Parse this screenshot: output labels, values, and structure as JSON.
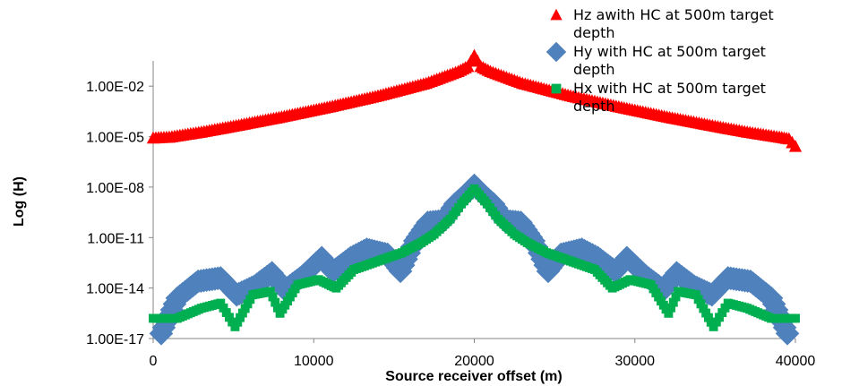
{
  "chart_data": {
    "type": "scatter",
    "title": "",
    "xlabel": "Source receiver offset (m)",
    "ylabel": "Log (H)",
    "xlim": [
      0,
      40000
    ],
    "ylim_log10": [
      -17,
      -0.5
    ],
    "y_scale": "log",
    "x_ticks": [
      0,
      10000,
      20000,
      30000,
      40000
    ],
    "x_tick_labels": [
      "0",
      "10000",
      "20000",
      "30000",
      "40000"
    ],
    "y_ticks_log10": [
      -17,
      -14,
      -11,
      -8,
      -5,
      -2
    ],
    "y_tick_labels": [
      "1.00E-17",
      "1.00E-14",
      "1.00E-11",
      "1.00E-08",
      "1.00E-05",
      "1.00E-02"
    ],
    "grid": false,
    "legend_position": "top-right",
    "series": [
      {
        "name": "Hz awith HC at 500m target depth",
        "marker": "triangle",
        "color": "#ff0000",
        "x_log10_y": [
          [
            0,
            -5.1
          ],
          [
            1000,
            -5.05
          ],
          [
            3000,
            -4.75
          ],
          [
            5000,
            -4.4
          ],
          [
            8000,
            -3.85
          ],
          [
            11000,
            -3.25
          ],
          [
            14000,
            -2.6
          ],
          [
            17000,
            -1.85
          ],
          [
            19000,
            -1.15
          ],
          [
            19600,
            -0.85
          ],
          [
            20000,
            -0.2
          ],
          [
            20400,
            -0.85
          ],
          [
            21000,
            -1.15
          ],
          [
            23000,
            -1.85
          ],
          [
            26000,
            -2.6
          ],
          [
            29000,
            -3.25
          ],
          [
            32000,
            -3.85
          ],
          [
            35000,
            -4.4
          ],
          [
            37000,
            -4.75
          ],
          [
            39000,
            -5.05
          ],
          [
            39600,
            -5.15
          ],
          [
            40000,
            -5.6
          ]
        ]
      },
      {
        "name": "Hy with HC at 500m target depth",
        "marker": "diamond",
        "color": "#4f81bd",
        "x_log10_y": [
          [
            500,
            -16.7
          ],
          [
            1500,
            -14.6
          ],
          [
            2800,
            -13.6
          ],
          [
            4200,
            -13.4
          ],
          [
            5200,
            -14.4
          ],
          [
            6300,
            -13.9
          ],
          [
            7400,
            -13.1
          ],
          [
            8200,
            -14.1
          ],
          [
            9300,
            -13.3
          ],
          [
            10500,
            -12.2
          ],
          [
            11200,
            -13.0
          ],
          [
            12300,
            -12.2
          ],
          [
            13300,
            -11.7
          ],
          [
            14600,
            -12.0
          ],
          [
            15400,
            -13.0
          ],
          [
            16300,
            -11.2
          ],
          [
            17100,
            -10.1
          ],
          [
            18100,
            -10.0
          ],
          [
            18800,
            -9.0
          ],
          [
            19500,
            -8.4
          ],
          [
            20000,
            -7.9
          ],
          [
            20500,
            -8.4
          ],
          [
            21200,
            -9.0
          ],
          [
            21900,
            -10.0
          ],
          [
            22900,
            -10.1
          ],
          [
            23700,
            -11.2
          ],
          [
            24600,
            -13.0
          ],
          [
            25400,
            -12.0
          ],
          [
            26700,
            -11.7
          ],
          [
            27700,
            -12.2
          ],
          [
            28800,
            -13.0
          ],
          [
            29500,
            -12.2
          ],
          [
            30700,
            -13.3
          ],
          [
            31800,
            -14.1
          ],
          [
            32600,
            -13.1
          ],
          [
            33700,
            -13.9
          ],
          [
            34800,
            -14.4
          ],
          [
            35800,
            -13.4
          ],
          [
            37200,
            -13.6
          ],
          [
            38500,
            -14.6
          ],
          [
            39500,
            -16.7
          ]
        ]
      },
      {
        "name": "Hx with HC at 500m target depth",
        "marker": "square",
        "color": "#00b050",
        "x_log10_y": [
          [
            0,
            -15.8
          ],
          [
            1500,
            -15.8
          ],
          [
            3000,
            -15.2
          ],
          [
            4200,
            -14.9
          ],
          [
            5100,
            -16.3
          ],
          [
            6200,
            -14.4
          ],
          [
            7300,
            -14.2
          ],
          [
            7900,
            -15.5
          ],
          [
            9000,
            -13.8
          ],
          [
            10300,
            -13.5
          ],
          [
            11400,
            -14.0
          ],
          [
            12500,
            -12.9
          ],
          [
            14000,
            -12.4
          ],
          [
            15500,
            -11.9
          ],
          [
            16700,
            -11.3
          ],
          [
            17500,
            -10.8
          ],
          [
            18500,
            -9.9
          ],
          [
            19200,
            -9.0
          ],
          [
            20000,
            -8.1
          ],
          [
            20800,
            -9.0
          ],
          [
            21500,
            -9.9
          ],
          [
            22500,
            -10.8
          ],
          [
            23300,
            -11.3
          ],
          [
            24500,
            -11.9
          ],
          [
            26000,
            -12.4
          ],
          [
            27500,
            -12.9
          ],
          [
            28600,
            -14.0
          ],
          [
            29700,
            -13.5
          ],
          [
            31000,
            -13.8
          ],
          [
            32100,
            -15.5
          ],
          [
            32700,
            -14.2
          ],
          [
            33800,
            -14.4
          ],
          [
            34900,
            -16.3
          ],
          [
            35800,
            -14.9
          ],
          [
            37000,
            -15.2
          ],
          [
            38500,
            -15.8
          ],
          [
            40000,
            -15.8
          ]
        ]
      }
    ]
  }
}
